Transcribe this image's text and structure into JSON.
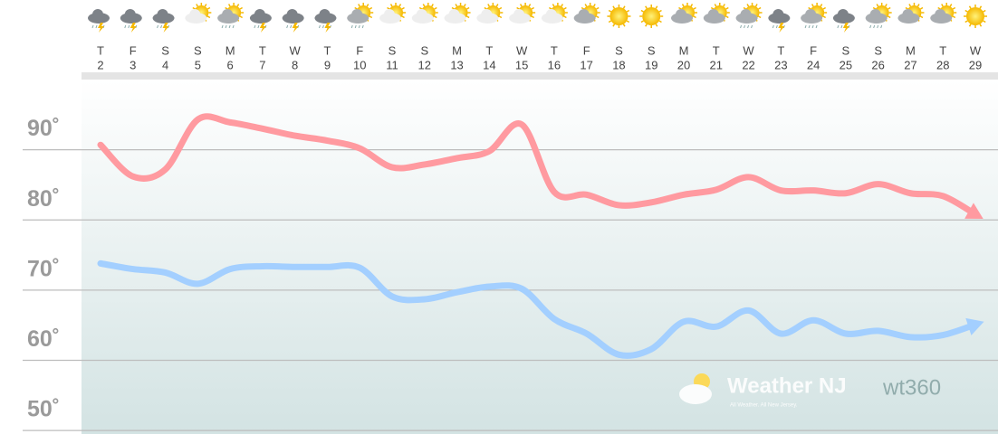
{
  "chart_data": {
    "type": "line",
    "categories": [
      "T",
      "F",
      "S",
      "S",
      "M",
      "T",
      "W",
      "T",
      "F",
      "S",
      "S",
      "M",
      "T",
      "W",
      "T",
      "F",
      "S",
      "S",
      "M",
      "T",
      "W",
      "T",
      "F",
      "S",
      "S",
      "M",
      "T",
      "W"
    ],
    "dates": [
      2,
      3,
      4,
      5,
      6,
      7,
      8,
      9,
      10,
      11,
      12,
      13,
      14,
      15,
      16,
      17,
      18,
      19,
      20,
      21,
      22,
      23,
      24,
      25,
      26,
      27,
      28,
      29
    ],
    "series": [
      {
        "color": "#ff9aa0",
        "values": [
          90.7,
          86.2,
          87.2,
          94.3,
          93.9,
          93.0,
          92.0,
          91.3,
          90.2,
          87.5,
          87.9,
          88.8,
          89.8,
          93.6,
          84.0,
          83.6,
          82.1,
          82.5,
          83.6,
          84.3,
          86.1,
          84.2,
          84.2,
          83.8,
          85.1,
          83.8,
          83.4,
          80.8
        ]
      },
      {
        "color": "#a3cfff",
        "values": [
          73.8,
          73.0,
          72.5,
          70.9,
          73.0,
          73.4,
          73.3,
          73.3,
          73.2,
          69.1,
          68.7,
          69.7,
          70.5,
          70.2,
          65.9,
          63.8,
          60.8,
          61.6,
          65.5,
          64.8,
          67.1,
          63.8,
          65.7,
          63.8,
          64.2,
          63.3,
          63.6,
          65.1
        ]
      }
    ],
    "ylim": [
      49.5,
      100
    ],
    "yticks": [
      {
        "value": 50,
        "label": "50˚"
      },
      {
        "value": 60,
        "label": "60˚"
      },
      {
        "value": 70,
        "label": "70˚"
      },
      {
        "value": 80,
        "label": "80˚"
      },
      {
        "value": 90,
        "label": "90˚"
      }
    ],
    "grid": true,
    "watermark": {
      "brand": "Weather NJ",
      "tagline": "All Weather. All New Jersey.",
      "partner": "wt360"
    }
  }
}
